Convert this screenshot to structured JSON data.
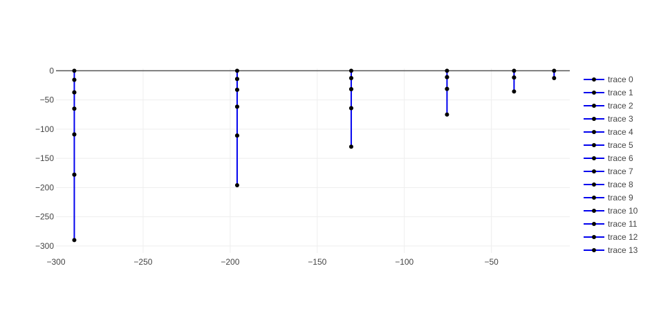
{
  "chart_data": {
    "type": "line",
    "title": "",
    "xlabel": "",
    "ylabel": "",
    "xlim": [
      -300,
      -5
    ],
    "ylim": [
      -312,
      4
    ],
    "x_ticks": [
      -300,
      -250,
      -200,
      -150,
      -100,
      -50
    ],
    "x_tick_labels": [
      "−300",
      "−250",
      "−200",
      "−150",
      "−100",
      "−50"
    ],
    "y_ticks": [
      0,
      -50,
      -100,
      -150,
      -200,
      -250,
      -300
    ],
    "y_tick_labels": [
      "0",
      "−50",
      "−100",
      "−150",
      "−200",
      "−250",
      "−300"
    ],
    "grid": true,
    "legend_position": "right",
    "colors": {
      "line": "#0000ee",
      "marker": "#000000",
      "axis_zero": "#555555",
      "grid": "#eeeeee"
    },
    "series": [
      {
        "name": "trace 0",
        "x": [
          -289.5,
          -289.5
        ],
        "y": [
          0,
          -15.5
        ]
      },
      {
        "name": "trace 1",
        "x": [
          -289.5,
          -289.5
        ],
        "y": [
          -15.5,
          -37
        ]
      },
      {
        "name": "trace 2",
        "x": [
          -289.5,
          -289.5
        ],
        "y": [
          -37,
          -65
        ]
      },
      {
        "name": "trace 3",
        "x": [
          -289.5,
          -289.5
        ],
        "y": [
          -65,
          -109
        ]
      },
      {
        "name": "trace 4",
        "x": [
          -289.5,
          -289.5
        ],
        "y": [
          -109,
          -178
        ]
      },
      {
        "name": "trace 5",
        "x": [
          -289.5,
          -289.5
        ],
        "y": [
          -178,
          -290
        ]
      },
      {
        "name": "trace 6",
        "x": [
          -196,
          -196
        ],
        "y": [
          0,
          -14
        ]
      },
      {
        "name": "trace 7",
        "x": [
          -196,
          -196
        ],
        "y": [
          -14,
          -32.5
        ]
      },
      {
        "name": "trace 8",
        "x": [
          -196,
          -196
        ],
        "y": [
          -32.5,
          -61.5
        ]
      },
      {
        "name": "trace 9",
        "x": [
          -196,
          -196
        ],
        "y": [
          -61.5,
          -111
        ]
      },
      {
        "name": "trace 10",
        "x": [
          -196,
          -196
        ],
        "y": [
          -111,
          -196
        ]
      },
      {
        "name": "trace 11",
        "x": [
          -130.5,
          -130.5
        ],
        "y": [
          0,
          -12.5
        ]
      },
      {
        "name": "trace 12",
        "x": [
          -130.5,
          -130.5
        ],
        "y": [
          -12.5,
          -31.5
        ]
      },
      {
        "name": "trace 13",
        "x": [
          -130.5,
          -130.5
        ],
        "y": [
          -31.5,
          -64
        ]
      }
    ],
    "extra_traces": [
      {
        "x": [
          -130.5,
          -130.5
        ],
        "y": [
          -64,
          -130
        ]
      },
      {
        "x": [
          -75.5,
          -75.5
        ],
        "y": [
          0,
          -11
        ]
      },
      {
        "x": [
          -75.5,
          -75.5
        ],
        "y": [
          -11,
          -31
        ]
      },
      {
        "x": [
          -75.5,
          -75.5
        ],
        "y": [
          -31,
          -75
        ]
      },
      {
        "x": [
          -37,
          -37
        ],
        "y": [
          0,
          -11.5
        ]
      },
      {
        "x": [
          -37,
          -37
        ],
        "y": [
          -11.5,
          -35.5
        ]
      },
      {
        "x": [
          -14,
          -14
        ],
        "y": [
          0,
          -12.5
        ]
      }
    ]
  }
}
